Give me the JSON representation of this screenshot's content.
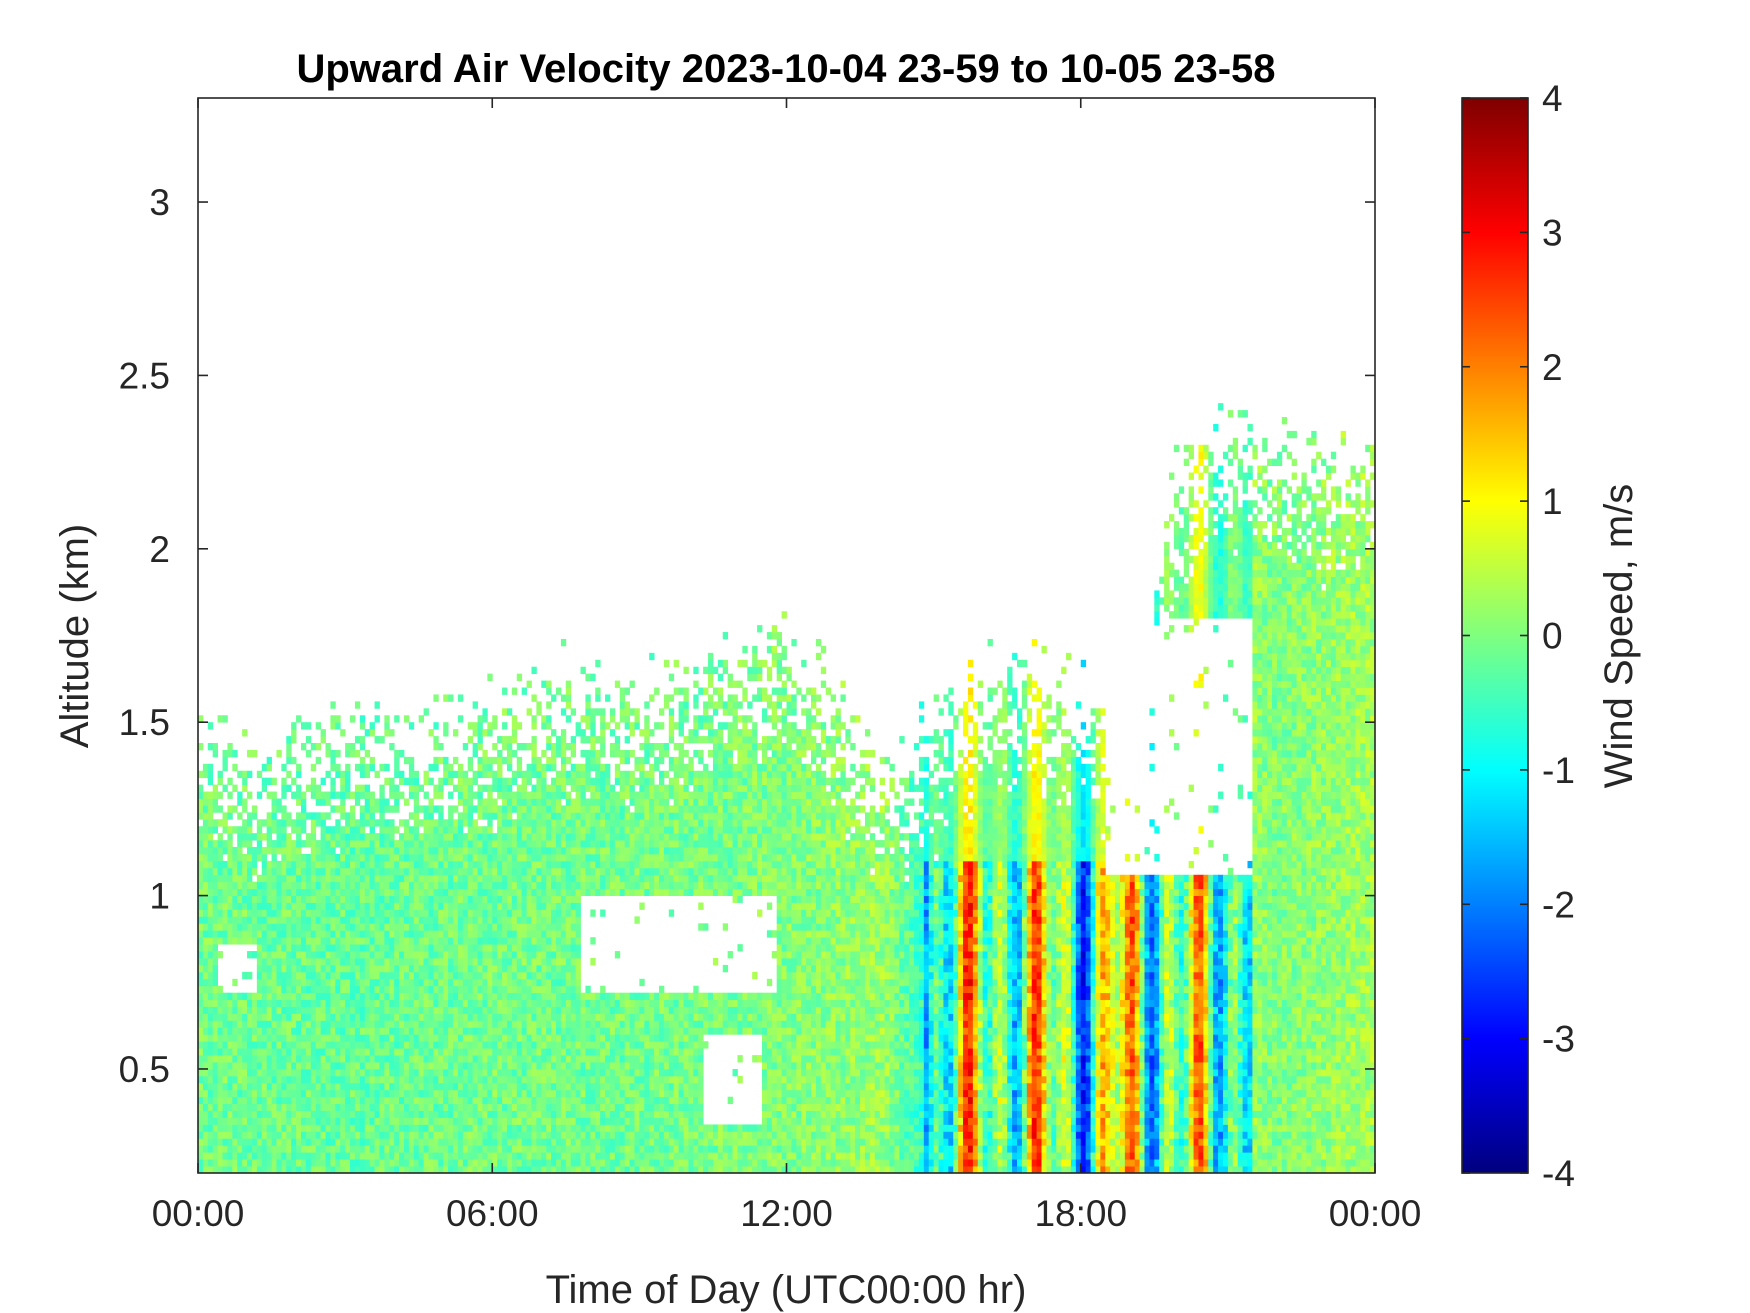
{
  "chart_data": {
    "type": "heatmap",
    "title": "Upward Air Velocity 2023-10-04 23-59 to 10-05 23-58",
    "xlabel": "Time of Day (UTC00:00 hr)",
    "ylabel": "Altitude (km)",
    "x_unit": "hours",
    "xlim": [
      0,
      24
    ],
    "ylim": [
      0.2,
      3.3
    ],
    "x_ticks": [
      {
        "value": 0,
        "label": "00:00"
      },
      {
        "value": 6,
        "label": "06:00"
      },
      {
        "value": 12,
        "label": "12:00"
      },
      {
        "value": 18,
        "label": "18:00"
      },
      {
        "value": 24,
        "label": "00:00"
      }
    ],
    "y_ticks": [
      {
        "value": 0.5,
        "label": "0.5"
      },
      {
        "value": 1,
        "label": "1"
      },
      {
        "value": 1.5,
        "label": "1.5"
      },
      {
        "value": 2,
        "label": "2"
      },
      {
        "value": 2.5,
        "label": "2.5"
      },
      {
        "value": 3,
        "label": "3"
      }
    ],
    "colorbar": {
      "label": "Wind Speed, m/s",
      "colormap": "jet",
      "range": [
        -4,
        4
      ],
      "ticks": [
        {
          "value": 4,
          "label": "4"
        },
        {
          "value": 3,
          "label": "3"
        },
        {
          "value": 2,
          "label": "2"
        },
        {
          "value": 1,
          "label": "1"
        },
        {
          "value": 0,
          "label": "0"
        },
        {
          "value": -1,
          "label": "-1"
        },
        {
          "value": -2,
          "label": "-2"
        },
        {
          "value": -3,
          "label": "-3"
        },
        {
          "value": -4,
          "label": "-4"
        }
      ]
    },
    "grid": false,
    "cloud_top_profile": {
      "hours": [
        0,
        1,
        2,
        3,
        4,
        5,
        6,
        7,
        8,
        9,
        10,
        11,
        12,
        13,
        14,
        15,
        16,
        17,
        18,
        19,
        20,
        21,
        22,
        23,
        24
      ],
      "top_km": [
        1.45,
        1.35,
        1.4,
        1.45,
        1.45,
        1.45,
        1.5,
        1.6,
        1.6,
        1.55,
        1.6,
        1.7,
        1.7,
        1.55,
        1.3,
        1.45,
        1.6,
        1.6,
        1.55,
        1.4,
        2.2,
        2.3,
        2.3,
        2.2,
        2.25
      ]
    },
    "clear_regions": [
      {
        "hours": [
          7.8,
          11.8
        ],
        "km": [
          0.72,
          1.0
        ]
      },
      {
        "hours": [
          10.3,
          11.5
        ],
        "km": [
          0.35,
          0.6
        ]
      },
      {
        "hours": [
          0.4,
          1.2
        ],
        "km": [
          0.72,
          0.85
        ]
      },
      {
        "hours": [
          18.5,
          21.5
        ],
        "km": [
          1.05,
          1.8
        ]
      }
    ],
    "mean_velocity_by_hour": {
      "hours": [
        0,
        3,
        6,
        9,
        12,
        14,
        15,
        16,
        17,
        18,
        19,
        20,
        21,
        22,
        24
      ],
      "mean_m_s": [
        -0.1,
        -0.2,
        -0.1,
        -0.1,
        0.0,
        0.2,
        -0.8,
        1.0,
        0.8,
        -0.6,
        1.2,
        -0.4,
        0.3,
        0.0,
        0.3
      ]
    }
  }
}
